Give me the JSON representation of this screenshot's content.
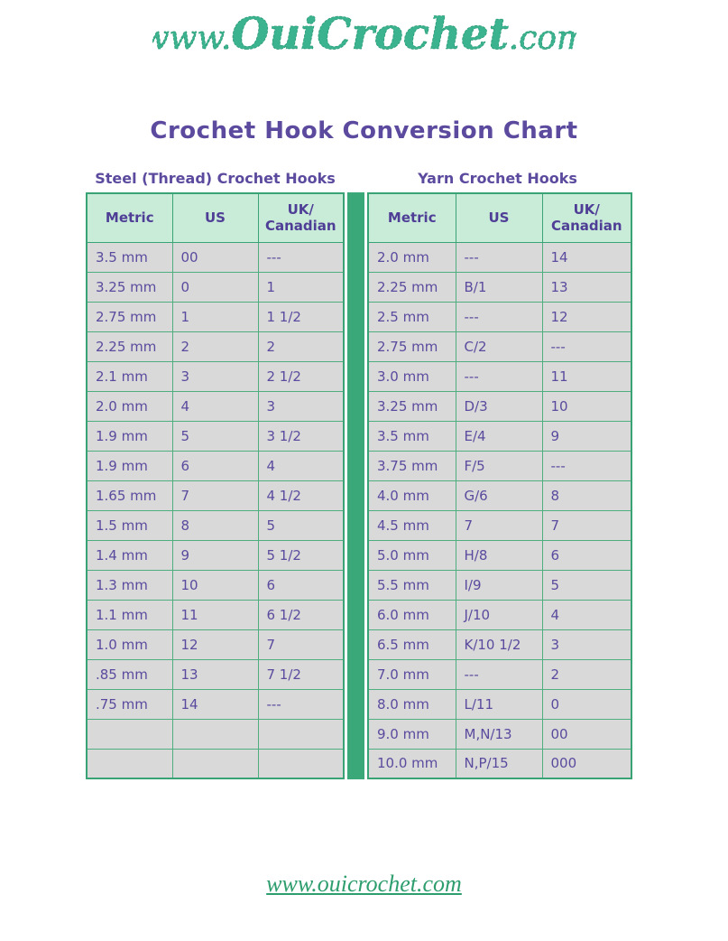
{
  "logo": {
    "prefix": "www.",
    "brand": "OuiCrochet",
    "suffix": ".com"
  },
  "title": "Crochet Hook Conversion Chart",
  "tables": [
    {
      "heading": "Steel (Thread) Crochet Hooks",
      "columns": [
        "Metric",
        "US",
        "UK/\nCanadian"
      ],
      "rows": [
        [
          "3.5 mm",
          "00",
          "---"
        ],
        [
          "3.25 mm",
          "0",
          "1"
        ],
        [
          "2.75 mm",
          "1",
          "1 1/2"
        ],
        [
          "2.25 mm",
          "2",
          "2"
        ],
        [
          "2.1 mm",
          "3",
          "2 1/2"
        ],
        [
          "2.0 mm",
          "4",
          "3"
        ],
        [
          "1.9 mm",
          "5",
          "3 1/2"
        ],
        [
          "1.9 mm",
          "6",
          "4"
        ],
        [
          "1.65 mm",
          "7",
          "4 1/2"
        ],
        [
          "1.5 mm",
          "8",
          "5"
        ],
        [
          "1.4 mm",
          "9",
          "5 1/2"
        ],
        [
          "1.3 mm",
          "10",
          "6"
        ],
        [
          "1.1 mm",
          "11",
          "6 1/2"
        ],
        [
          "1.0 mm",
          "12",
          "7"
        ],
        [
          ".85 mm",
          "13",
          "7 1/2"
        ],
        [
          ".75 mm",
          "14",
          "---"
        ],
        [
          "",
          "",
          ""
        ],
        [
          "",
          "",
          ""
        ]
      ]
    },
    {
      "heading": "Yarn Crochet Hooks",
      "columns": [
        "Metric",
        "US",
        "UK/\nCanadian"
      ],
      "rows": [
        [
          "2.0 mm",
          "---",
          "14"
        ],
        [
          "2.25 mm",
          "B/1",
          "13"
        ],
        [
          "2.5 mm",
          "---",
          "12"
        ],
        [
          "2.75 mm",
          "C/2",
          "---"
        ],
        [
          "3.0 mm",
          "---",
          "11"
        ],
        [
          "3.25 mm",
          "D/3",
          "10"
        ],
        [
          "3.5 mm",
          "E/4",
          "9"
        ],
        [
          "3.75 mm",
          "F/5",
          "---"
        ],
        [
          "4.0 mm",
          "G/6",
          "8"
        ],
        [
          "4.5 mm",
          "7",
          "7"
        ],
        [
          "5.0 mm",
          "H/8",
          "6"
        ],
        [
          "5.5 mm",
          "I/9",
          "5"
        ],
        [
          "6.0 mm",
          "J/10",
          "4"
        ],
        [
          "6.5 mm",
          "K/10 1/2",
          "3"
        ],
        [
          "7.0 mm",
          "---",
          "2"
        ],
        [
          "8.0 mm",
          "L/11",
          "0"
        ],
        [
          "9.0 mm",
          "M,N/13",
          "00"
        ],
        [
          "10.0 mm",
          "N,P/15",
          "000"
        ]
      ]
    }
  ],
  "footer": {
    "link_text": "www.ouicrochet.com"
  },
  "colors": {
    "logo_teal": "#3bb38e",
    "title_purple": "#5b4a9e",
    "table_border_green": "#3aa376",
    "divider_green": "#3aa878",
    "header_mint": "#c9ecd9",
    "row_gray": "#d9d9d9",
    "cell_text_purple": "#5b4a9e",
    "footer_green": "#2f9e6e"
  }
}
